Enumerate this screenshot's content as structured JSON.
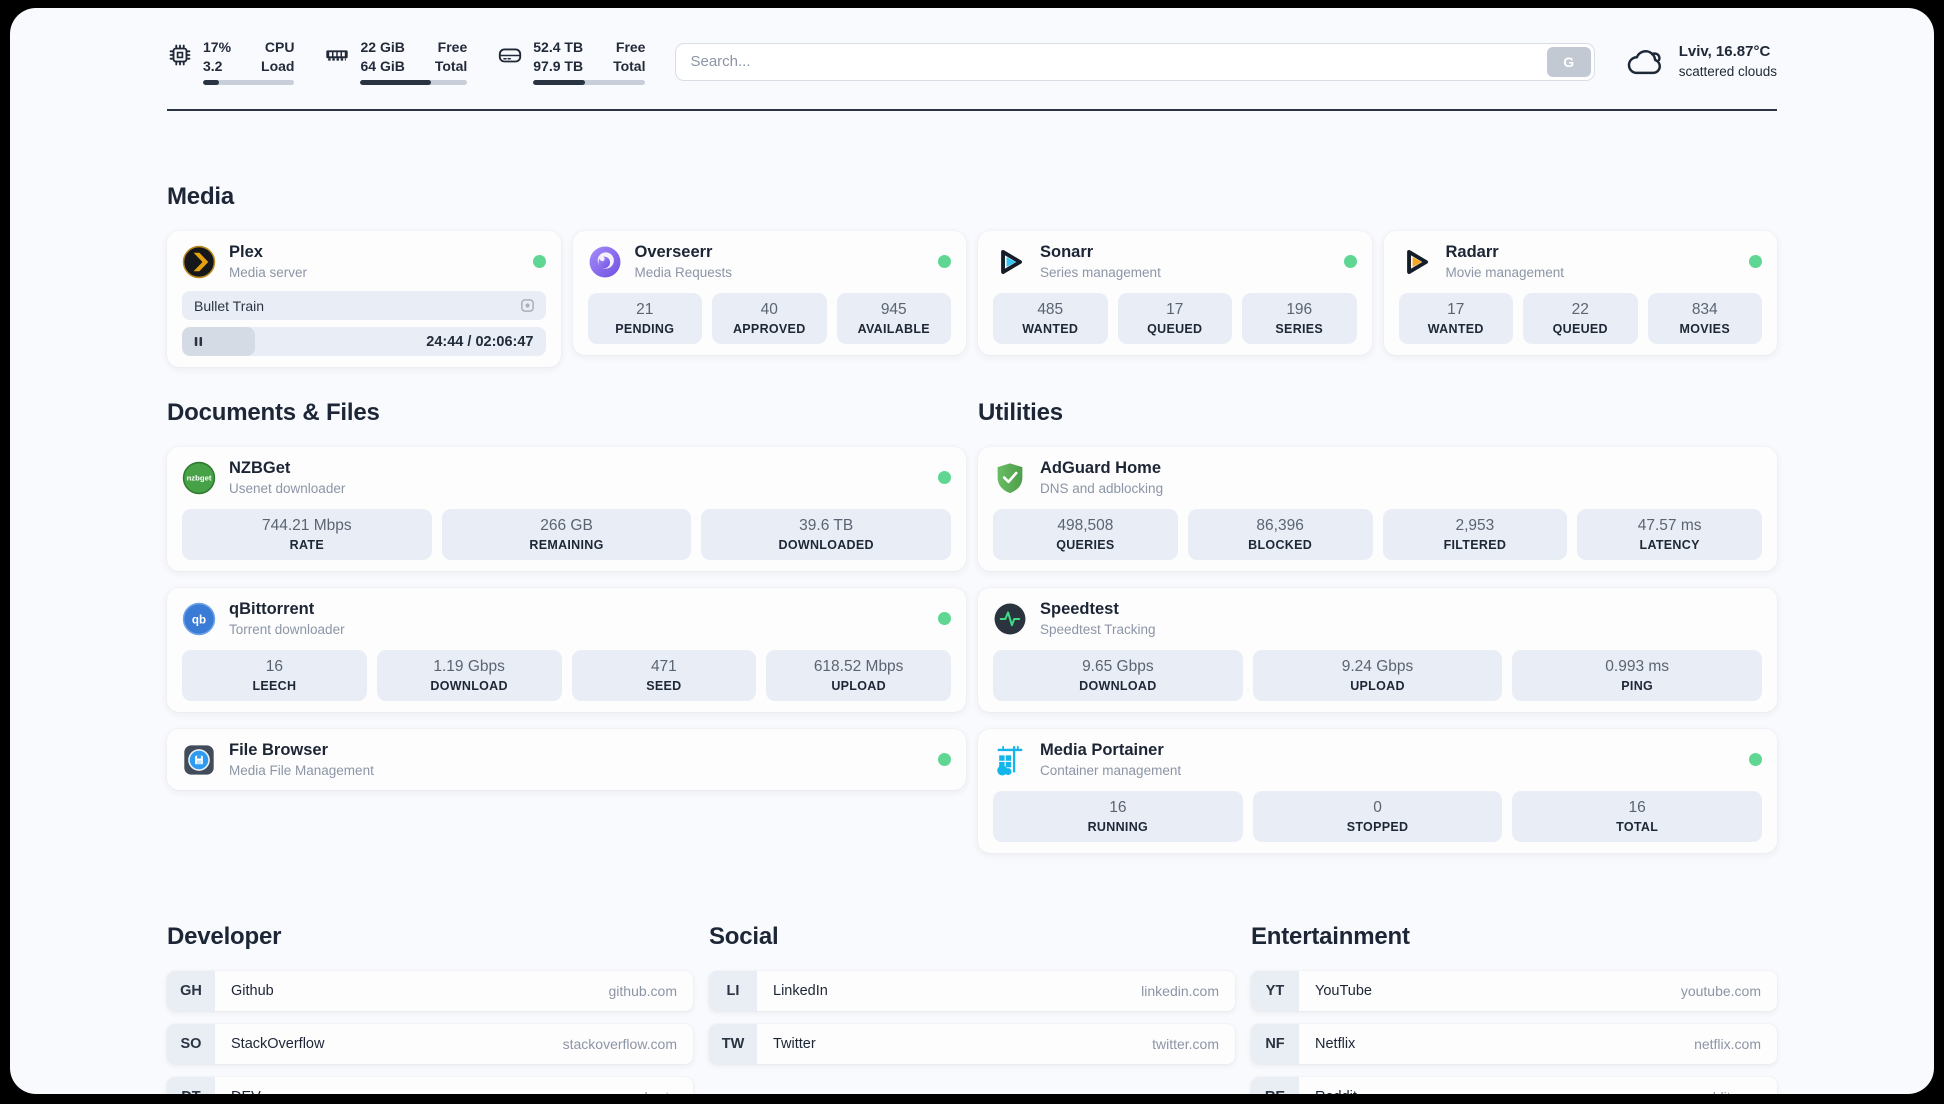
{
  "top_bar": {
    "monitors": [
      {
        "icon": "cpu-icon",
        "line1_value": "17%",
        "line1_label": "CPU",
        "line2_value": "3.2",
        "line2_label": "Load",
        "percent": 17
      },
      {
        "icon": "ram-icon",
        "line1_value": "22 GiB",
        "line1_label": "Free",
        "line2_value": "64 GiB",
        "line2_label": "Total",
        "percent": 66
      },
      {
        "icon": "disk-icon",
        "line1_value": "52.4 TB",
        "line1_label": "Free",
        "line2_value": "97.9 TB",
        "line2_label": "Total",
        "percent": 46
      }
    ],
    "search": {
      "placeholder": "Search...",
      "button_label": "G"
    },
    "weather": {
      "location_temp": "Lviv, 16.87°C",
      "condition": "scattered clouds"
    }
  },
  "sections": {
    "media": {
      "title": "Media",
      "cards": [
        {
          "id": "plex",
          "icon": "plex-icon",
          "name": "Plex",
          "subtitle": "Media server",
          "online": true,
          "player": {
            "now_playing": "Bullet Train",
            "time_display": "24:44 / 02:06:47",
            "progress_percent": 20
          }
        },
        {
          "id": "overseerr",
          "icon": "overseerr-icon",
          "name": "Overseerr",
          "subtitle": "Media Requests",
          "online": true,
          "stats": [
            {
              "value": "21",
              "label": "PENDING"
            },
            {
              "value": "40",
              "label": "APPROVED"
            },
            {
              "value": "945",
              "label": "AVAILABLE"
            }
          ]
        },
        {
          "id": "sonarr",
          "icon": "sonarr-icon",
          "name": "Sonarr",
          "subtitle": "Series management",
          "online": true,
          "stats": [
            {
              "value": "485",
              "label": "WANTED"
            },
            {
              "value": "17",
              "label": "QUEUED"
            },
            {
              "value": "196",
              "label": "SERIES"
            }
          ]
        },
        {
          "id": "radarr",
          "icon": "radarr-icon",
          "name": "Radarr",
          "subtitle": "Movie management",
          "online": true,
          "stats": [
            {
              "value": "17",
              "label": "WANTED"
            },
            {
              "value": "22",
              "label": "QUEUED"
            },
            {
              "value": "834",
              "label": "MOVIES"
            }
          ]
        }
      ]
    },
    "documents": {
      "title": "Documents & Files",
      "cards": [
        {
          "id": "nzbget",
          "icon": "nzbget-icon",
          "name": "NZBGet",
          "subtitle": "Usenet downloader",
          "online": true,
          "stats": [
            {
              "value": "744.21 Mbps",
              "label": "RATE"
            },
            {
              "value": "266 GB",
              "label": "REMAINING"
            },
            {
              "value": "39.6 TB",
              "label": "DOWNLOADED"
            }
          ]
        },
        {
          "id": "qbittorrent",
          "icon": "qbittorrent-icon",
          "name": "qBittorrent",
          "subtitle": "Torrent downloader",
          "online": true,
          "stats": [
            {
              "value": "16",
              "label": "LEECH"
            },
            {
              "value": "1.19 Gbps",
              "label": "DOWNLOAD"
            },
            {
              "value": "471",
              "label": "SEED"
            },
            {
              "value": "618.52 Mbps",
              "label": "UPLOAD"
            }
          ]
        },
        {
          "id": "filebrowser",
          "icon": "filebrowser-icon",
          "name": "File Browser",
          "subtitle": "Media File Management",
          "online": true
        }
      ]
    },
    "utilities": {
      "title": "Utilities",
      "cards": [
        {
          "id": "adguard",
          "icon": "adguard-icon",
          "name": "AdGuard Home",
          "subtitle": "DNS and adblocking",
          "online": false,
          "stats": [
            {
              "value": "498,508",
              "label": "QUERIES"
            },
            {
              "value": "86,396",
              "label": "BLOCKED"
            },
            {
              "value": "2,953",
              "label": "FILTERED"
            },
            {
              "value": "47.57 ms",
              "label": "LATENCY"
            }
          ]
        },
        {
          "id": "speedtest",
          "icon": "speedtest-icon",
          "name": "Speedtest",
          "subtitle": "Speedtest Tracking",
          "online": false,
          "stats": [
            {
              "value": "9.65 Gbps",
              "label": "DOWNLOAD"
            },
            {
              "value": "9.24 Gbps",
              "label": "UPLOAD"
            },
            {
              "value": "0.993 ms",
              "label": "PING"
            }
          ]
        },
        {
          "id": "portainer",
          "icon": "portainer-icon",
          "name": "Media Portainer",
          "subtitle": "Container management",
          "online": true,
          "stats": [
            {
              "value": "16",
              "label": "RUNNING"
            },
            {
              "value": "0",
              "label": "STOPPED"
            },
            {
              "value": "16",
              "label": "TOTAL"
            }
          ]
        }
      ]
    },
    "links": [
      {
        "title": "Developer",
        "items": [
          {
            "abbr": "GH",
            "name": "Github",
            "url": "github.com"
          },
          {
            "abbr": "SO",
            "name": "StackOverflow",
            "url": "stackoverflow.com"
          },
          {
            "abbr": "DT",
            "name": "DEV",
            "url": "dev.to"
          }
        ]
      },
      {
        "title": "Social",
        "items": [
          {
            "abbr": "LI",
            "name": "LinkedIn",
            "url": "linkedin.com"
          },
          {
            "abbr": "TW",
            "name": "Twitter",
            "url": "twitter.com"
          }
        ]
      },
      {
        "title": "Entertainment",
        "items": [
          {
            "abbr": "YT",
            "name": "YouTube",
            "url": "youtube.com"
          },
          {
            "abbr": "NF",
            "name": "Netflix",
            "url": "netflix.com"
          },
          {
            "abbr": "RE",
            "name": "Reddit",
            "url": "reddit.com"
          }
        ]
      }
    ]
  },
  "colors": {
    "status_online": "#5fd792",
    "stat_bg": "#e9eef6",
    "text_dark": "#1d2636",
    "text_muted": "#8c95a5"
  }
}
